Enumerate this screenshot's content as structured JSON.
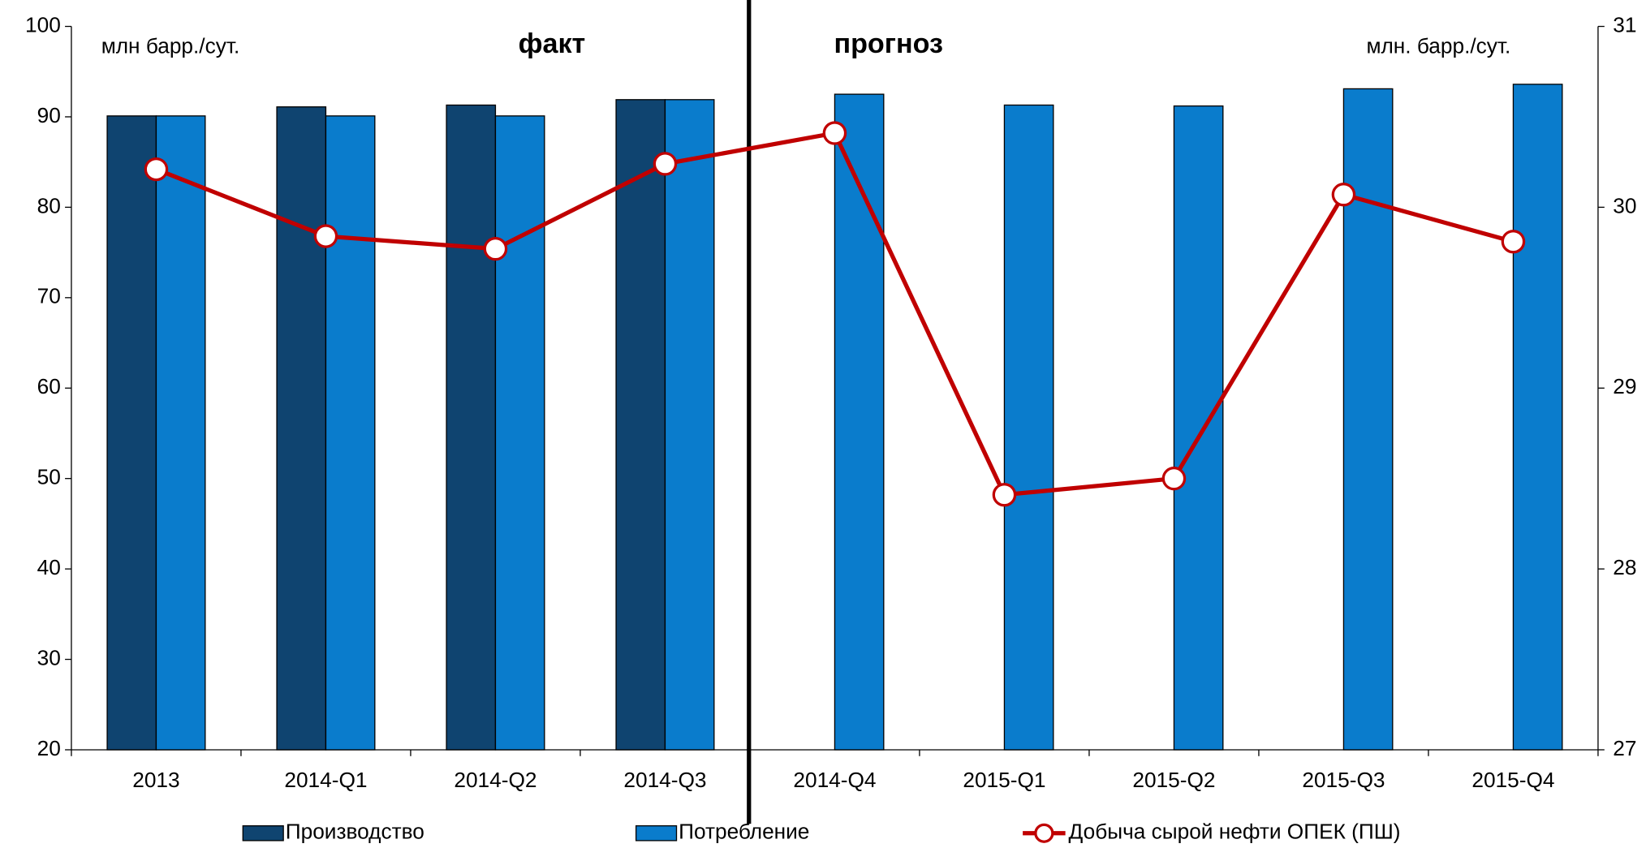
{
  "chart_data": {
    "type": "bar",
    "categories": [
      "2013",
      "2014-Q1",
      "2014-Q2",
      "2014-Q3",
      "2014-Q4",
      "2015-Q1",
      "2015-Q2",
      "2015-Q3",
      "2015-Q4"
    ],
    "series": [
      {
        "name": "Производство",
        "color": "#0f4470",
        "values": [
          90.1,
          91.1,
          91.3,
          91.9,
          null,
          null,
          null,
          null,
          null
        ]
      },
      {
        "name": "Потребление",
        "color": "#0a7ccc",
        "values": [
          90.1,
          90.1,
          90.1,
          91.9,
          92.5,
          91.3,
          91.2,
          93.1,
          93.6
        ]
      },
      {
        "name": "Добыча сырой нефти ОПЕК (ПШ)",
        "color": "#c00000",
        "type": "line",
        "axis": "y2",
        "values": [
          30.21,
          29.84,
          29.77,
          30.24,
          30.41,
          28.41,
          28.5,
          30.07,
          29.81
        ]
      }
    ],
    "ylim": [
      20,
      100
    ],
    "yticks": [
      20,
      30,
      40,
      50,
      60,
      70,
      80,
      90,
      100
    ],
    "y2lim": [
      27,
      31
    ],
    "y2ticks": [
      27,
      28,
      29,
      30,
      31
    ],
    "annotations": [
      "млн барр./сут.",
      "факт",
      "прогноз",
      "млн. барр./сут."
    ],
    "legend": "bottom"
  }
}
